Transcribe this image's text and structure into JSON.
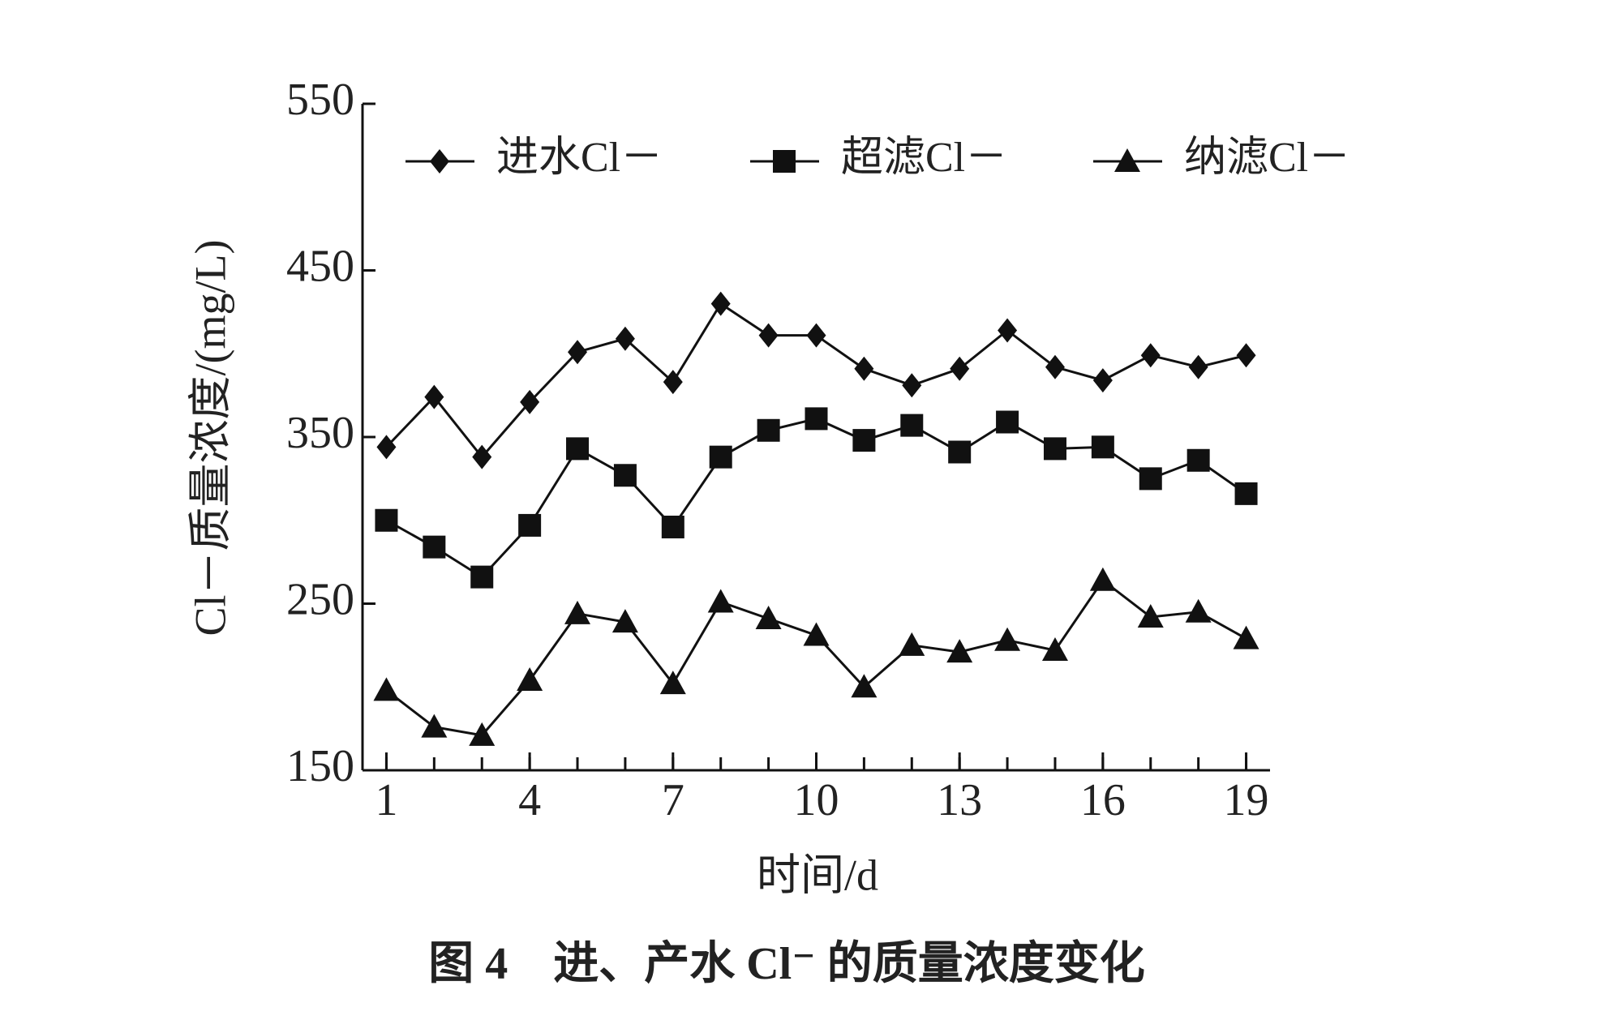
{
  "chart_data": {
    "type": "line",
    "caption": "图 4　进、产水 Cl⁻ 的质量浓度变化",
    "x_label": "时间/d",
    "y_label": "Cl－质量浓度/(mg/L)",
    "x": [
      1,
      2,
      3,
      4,
      5,
      6,
      7,
      8,
      9,
      10,
      11,
      12,
      13,
      14,
      15,
      16,
      17,
      18,
      19
    ],
    "xlim": [
      0.5,
      19.5
    ],
    "xticks": [
      1,
      4,
      7,
      10,
      13,
      16,
      19
    ],
    "ylim": [
      150,
      550
    ],
    "yticks": [
      150,
      250,
      350,
      450,
      550
    ],
    "legend": "top",
    "series": [
      {
        "name": "进水Cl－",
        "color": "#111111",
        "marker": "diamond",
        "values": [
          344,
          374,
          338,
          371,
          401,
          409,
          383,
          430,
          411,
          411,
          391,
          381,
          391,
          414,
          392,
          384,
          399,
          392,
          399
        ]
      },
      {
        "name": "超滤Cl－",
        "color": "#111111",
        "marker": "square",
        "values": [
          300,
          284,
          266,
          297,
          343,
          327,
          296,
          338,
          354,
          361,
          348,
          357,
          341,
          359,
          343,
          344,
          325,
          336,
          316
        ]
      },
      {
        "name": "纳滤Cl－",
        "color": "#111111",
        "marker": "triangle",
        "values": [
          198,
          176,
          171,
          204,
          244,
          239,
          202,
          251,
          241,
          231,
          200,
          225,
          221,
          228,
          222,
          264,
          242,
          245,
          229
        ]
      }
    ]
  }
}
